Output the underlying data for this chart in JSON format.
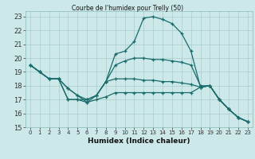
{
  "title": "Courbe de l'humidex pour Trelly (50)",
  "xlabel": "Humidex (Indice chaleur)",
  "background_color": "#cce8e8",
  "grid_color": "#aacccc",
  "line_color": "#1a6b6b",
  "xlim": [
    -0.5,
    23.5
  ],
  "ylim": [
    15,
    23.4
  ],
  "yticks": [
    15,
    16,
    17,
    18,
    19,
    20,
    21,
    22,
    23
  ],
  "xticks": [
    0,
    1,
    2,
    3,
    4,
    5,
    6,
    7,
    8,
    9,
    10,
    11,
    12,
    13,
    14,
    15,
    16,
    17,
    18,
    19,
    20,
    21,
    22,
    23
  ],
  "series": [
    {
      "x": [
        0,
        1,
        2,
        3,
        4,
        5,
        6,
        7,
        8,
        9,
        10,
        11,
        12,
        13,
        14,
        15,
        16,
        17,
        18,
        19,
        20,
        21,
        22,
        23
      ],
      "y": [
        19.5,
        19.0,
        18.5,
        18.5,
        17.0,
        17.0,
        17.0,
        17.3,
        18.3,
        20.3,
        20.5,
        21.2,
        22.9,
        23.0,
        22.8,
        22.5,
        21.8,
        20.5,
        17.9,
        18.0,
        17.0,
        16.3,
        15.7,
        15.4
      ]
    },
    {
      "x": [
        0,
        1,
        2,
        3,
        4,
        5,
        6,
        7,
        8,
        9,
        10,
        11,
        12,
        13,
        14,
        15,
        16,
        17,
        18,
        19,
        20,
        21,
        22,
        23
      ],
      "y": [
        19.5,
        19.0,
        18.5,
        18.5,
        17.8,
        17.3,
        17.0,
        17.3,
        18.3,
        19.5,
        19.8,
        20.0,
        20.0,
        19.9,
        19.9,
        19.8,
        19.7,
        19.5,
        18.0,
        18.0,
        17.0,
        16.3,
        15.7,
        15.4
      ]
    },
    {
      "x": [
        0,
        1,
        2,
        3,
        4,
        5,
        6,
        7,
        8,
        9,
        10,
        11,
        12,
        13,
        14,
        15,
        16,
        17,
        18,
        19,
        20,
        21,
        22,
        23
      ],
      "y": [
        19.5,
        19.0,
        18.5,
        18.5,
        17.8,
        17.3,
        16.8,
        17.3,
        18.3,
        18.5,
        18.5,
        18.5,
        18.4,
        18.4,
        18.3,
        18.3,
        18.2,
        18.1,
        17.9,
        18.0,
        17.0,
        16.3,
        15.7,
        15.4
      ]
    },
    {
      "x": [
        0,
        1,
        2,
        3,
        4,
        5,
        6,
        7,
        8,
        9,
        10,
        11,
        12,
        13,
        14,
        15,
        16,
        17,
        18,
        19,
        20,
        21,
        22,
        23
      ],
      "y": [
        19.5,
        19.0,
        18.5,
        18.5,
        17.0,
        17.0,
        16.8,
        17.0,
        17.2,
        17.5,
        17.5,
        17.5,
        17.5,
        17.5,
        17.5,
        17.5,
        17.5,
        17.5,
        17.9,
        18.0,
        17.0,
        16.3,
        15.7,
        15.4
      ]
    }
  ]
}
